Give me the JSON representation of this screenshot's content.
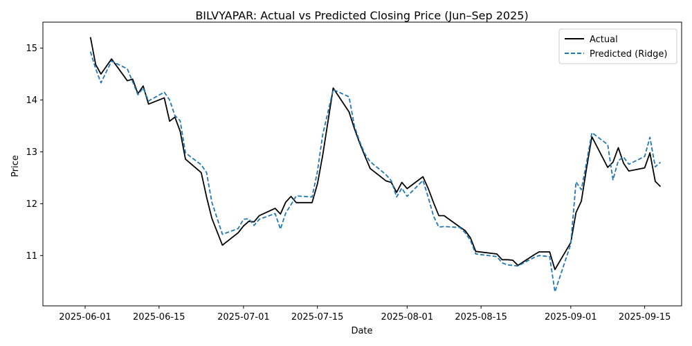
{
  "chart_data": {
    "type": "line",
    "title": "BILVYAPAR: Actual vs Predicted Closing Price (Jun–Sep 2025)",
    "xlabel": "Date",
    "ylabel": "Price",
    "x_axis_type": "date",
    "xlim": [
      "2025-05-24",
      "2025-09-22"
    ],
    "ylim": [
      10.03,
      15.5
    ],
    "x_ticks": [
      "2025-06-01",
      "2025-06-15",
      "2025-07-01",
      "2025-07-15",
      "2025-08-01",
      "2025-08-15",
      "2025-09-01",
      "2025-09-15"
    ],
    "y_ticks": [
      11,
      12,
      13,
      14,
      15
    ],
    "grid": false,
    "legend_position": "top-right",
    "x": [
      "2025-06-02",
      "2025-06-03",
      "2025-06-04",
      "2025-06-06",
      "2025-06-09",
      "2025-06-10",
      "2025-06-11",
      "2025-06-12",
      "2025-06-13",
      "2025-06-16",
      "2025-06-17",
      "2025-06-18",
      "2025-06-19",
      "2025-06-20",
      "2025-06-23",
      "2025-06-24",
      "2025-06-25",
      "2025-06-27",
      "2025-06-30",
      "2025-07-01",
      "2025-07-02",
      "2025-07-03",
      "2025-07-04",
      "2025-07-07",
      "2025-07-08",
      "2025-07-09",
      "2025-07-10",
      "2025-07-11",
      "2025-07-14",
      "2025-07-15",
      "2025-07-16",
      "2025-07-18",
      "2025-07-21",
      "2025-07-22",
      "2025-07-23",
      "2025-07-24",
      "2025-07-25",
      "2025-07-28",
      "2025-07-29",
      "2025-07-30",
      "2025-07-31",
      "2025-08-01",
      "2025-08-04",
      "2025-08-05",
      "2025-08-06",
      "2025-08-07",
      "2025-08-08",
      "2025-08-11",
      "2025-08-12",
      "2025-08-13",
      "2025-08-14",
      "2025-08-18",
      "2025-08-19",
      "2025-08-20",
      "2025-08-21",
      "2025-08-22",
      "2025-08-25",
      "2025-08-26",
      "2025-08-28",
      "2025-08-29",
      "2025-09-01",
      "2025-09-02",
      "2025-09-03",
      "2025-09-04",
      "2025-09-05",
      "2025-09-08",
      "2025-09-09",
      "2025-09-10",
      "2025-09-11",
      "2025-09-12",
      "2025-09-15",
      "2025-09-16",
      "2025-09-17",
      "2025-09-18"
    ],
    "series": [
      {
        "name": "Actual",
        "color": "#000000",
        "style": "solid",
        "values": [
          15.21,
          14.68,
          14.5,
          14.79,
          14.37,
          14.4,
          14.12,
          14.27,
          13.92,
          14.04,
          13.59,
          13.67,
          13.4,
          12.86,
          12.6,
          12.13,
          11.72,
          11.2,
          11.44,
          11.57,
          11.66,
          11.65,
          11.77,
          11.91,
          11.8,
          12.03,
          12.14,
          12.02,
          12.02,
          12.38,
          12.93,
          14.23,
          13.77,
          13.45,
          13.17,
          12.92,
          12.68,
          12.44,
          12.41,
          12.22,
          12.41,
          12.29,
          12.52,
          12.29,
          12.02,
          11.77,
          11.77,
          11.55,
          11.48,
          11.34,
          11.08,
          11.03,
          10.92,
          10.92,
          10.91,
          10.81,
          11.01,
          11.07,
          11.07,
          10.73,
          11.25,
          11.83,
          12.05,
          12.69,
          13.29,
          12.7,
          12.8,
          13.08,
          12.78,
          12.63,
          12.69,
          12.98,
          12.43,
          12.33
        ]
      },
      {
        "name": "Predicted (Ridge)",
        "color": "#1f77b4",
        "style": "dashed",
        "values": [
          14.93,
          14.6,
          14.33,
          14.75,
          14.6,
          14.35,
          14.1,
          14.23,
          13.98,
          14.15,
          14.0,
          13.7,
          13.6,
          12.98,
          12.75,
          12.6,
          12.03,
          11.41,
          11.52,
          11.7,
          11.71,
          11.58,
          11.7,
          11.81,
          11.51,
          11.82,
          11.98,
          12.15,
          12.13,
          12.62,
          13.33,
          14.2,
          14.06,
          13.5,
          13.2,
          12.96,
          12.81,
          12.56,
          12.44,
          12.13,
          12.3,
          12.14,
          12.45,
          12.12,
          11.76,
          11.55,
          11.56,
          11.54,
          11.44,
          11.29,
          11.03,
          10.98,
          10.86,
          10.82,
          10.81,
          10.8,
          10.96,
          11.0,
          10.98,
          10.3,
          11.22,
          12.42,
          12.27,
          12.8,
          13.37,
          13.14,
          12.46,
          12.83,
          12.9,
          12.76,
          12.91,
          13.28,
          12.71,
          12.8
        ]
      }
    ]
  }
}
